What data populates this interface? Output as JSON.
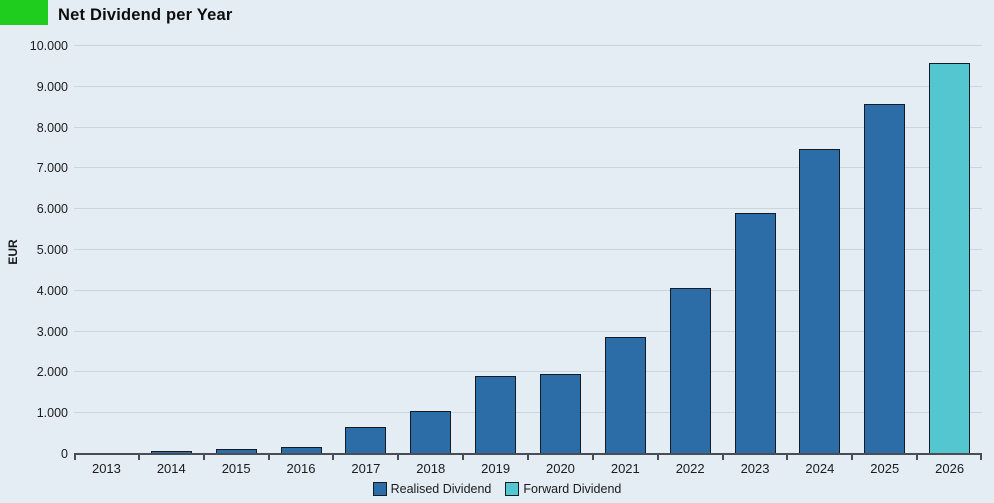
{
  "header": {
    "title": "Net Dividend per Year",
    "logo_color": "#1fcd1f"
  },
  "chart_data": {
    "type": "bar",
    "title": "Net Dividend per Year",
    "xlabel": "",
    "ylabel": "EUR",
    "ylim": [
      0,
      10000
    ],
    "y_tick_step": 1000,
    "y_tick_labels": [
      "0",
      "1.000",
      "2.000",
      "3.000",
      "4.000",
      "5.000",
      "6.000",
      "7.000",
      "8.000",
      "9.000",
      "10.000"
    ],
    "grid": true,
    "legend_position": "bottom",
    "categories": [
      "2013",
      "2014",
      "2015",
      "2016",
      "2017",
      "2018",
      "2019",
      "2020",
      "2021",
      "2022",
      "2023",
      "2024",
      "2025",
      "2026"
    ],
    "series": [
      {
        "name": "Realised Dividend",
        "color": "#2d6da7",
        "values": [
          10,
          60,
          90,
          150,
          650,
          1040,
          1880,
          1940,
          2850,
          4050,
          5880,
          7460,
          8560,
          null
        ]
      },
      {
        "name": "Forward Dividend",
        "color": "#53c6cf",
        "values": [
          null,
          null,
          null,
          null,
          null,
          null,
          null,
          null,
          null,
          null,
          null,
          null,
          null,
          9550
        ]
      }
    ]
  },
  "colors": {
    "background": "#e3edf3",
    "gridline": "#c9d6e0",
    "axis": "#4a4e54",
    "bar_border": "#141b24",
    "realised": "#2d6da7",
    "forward": "#53c6cf"
  }
}
